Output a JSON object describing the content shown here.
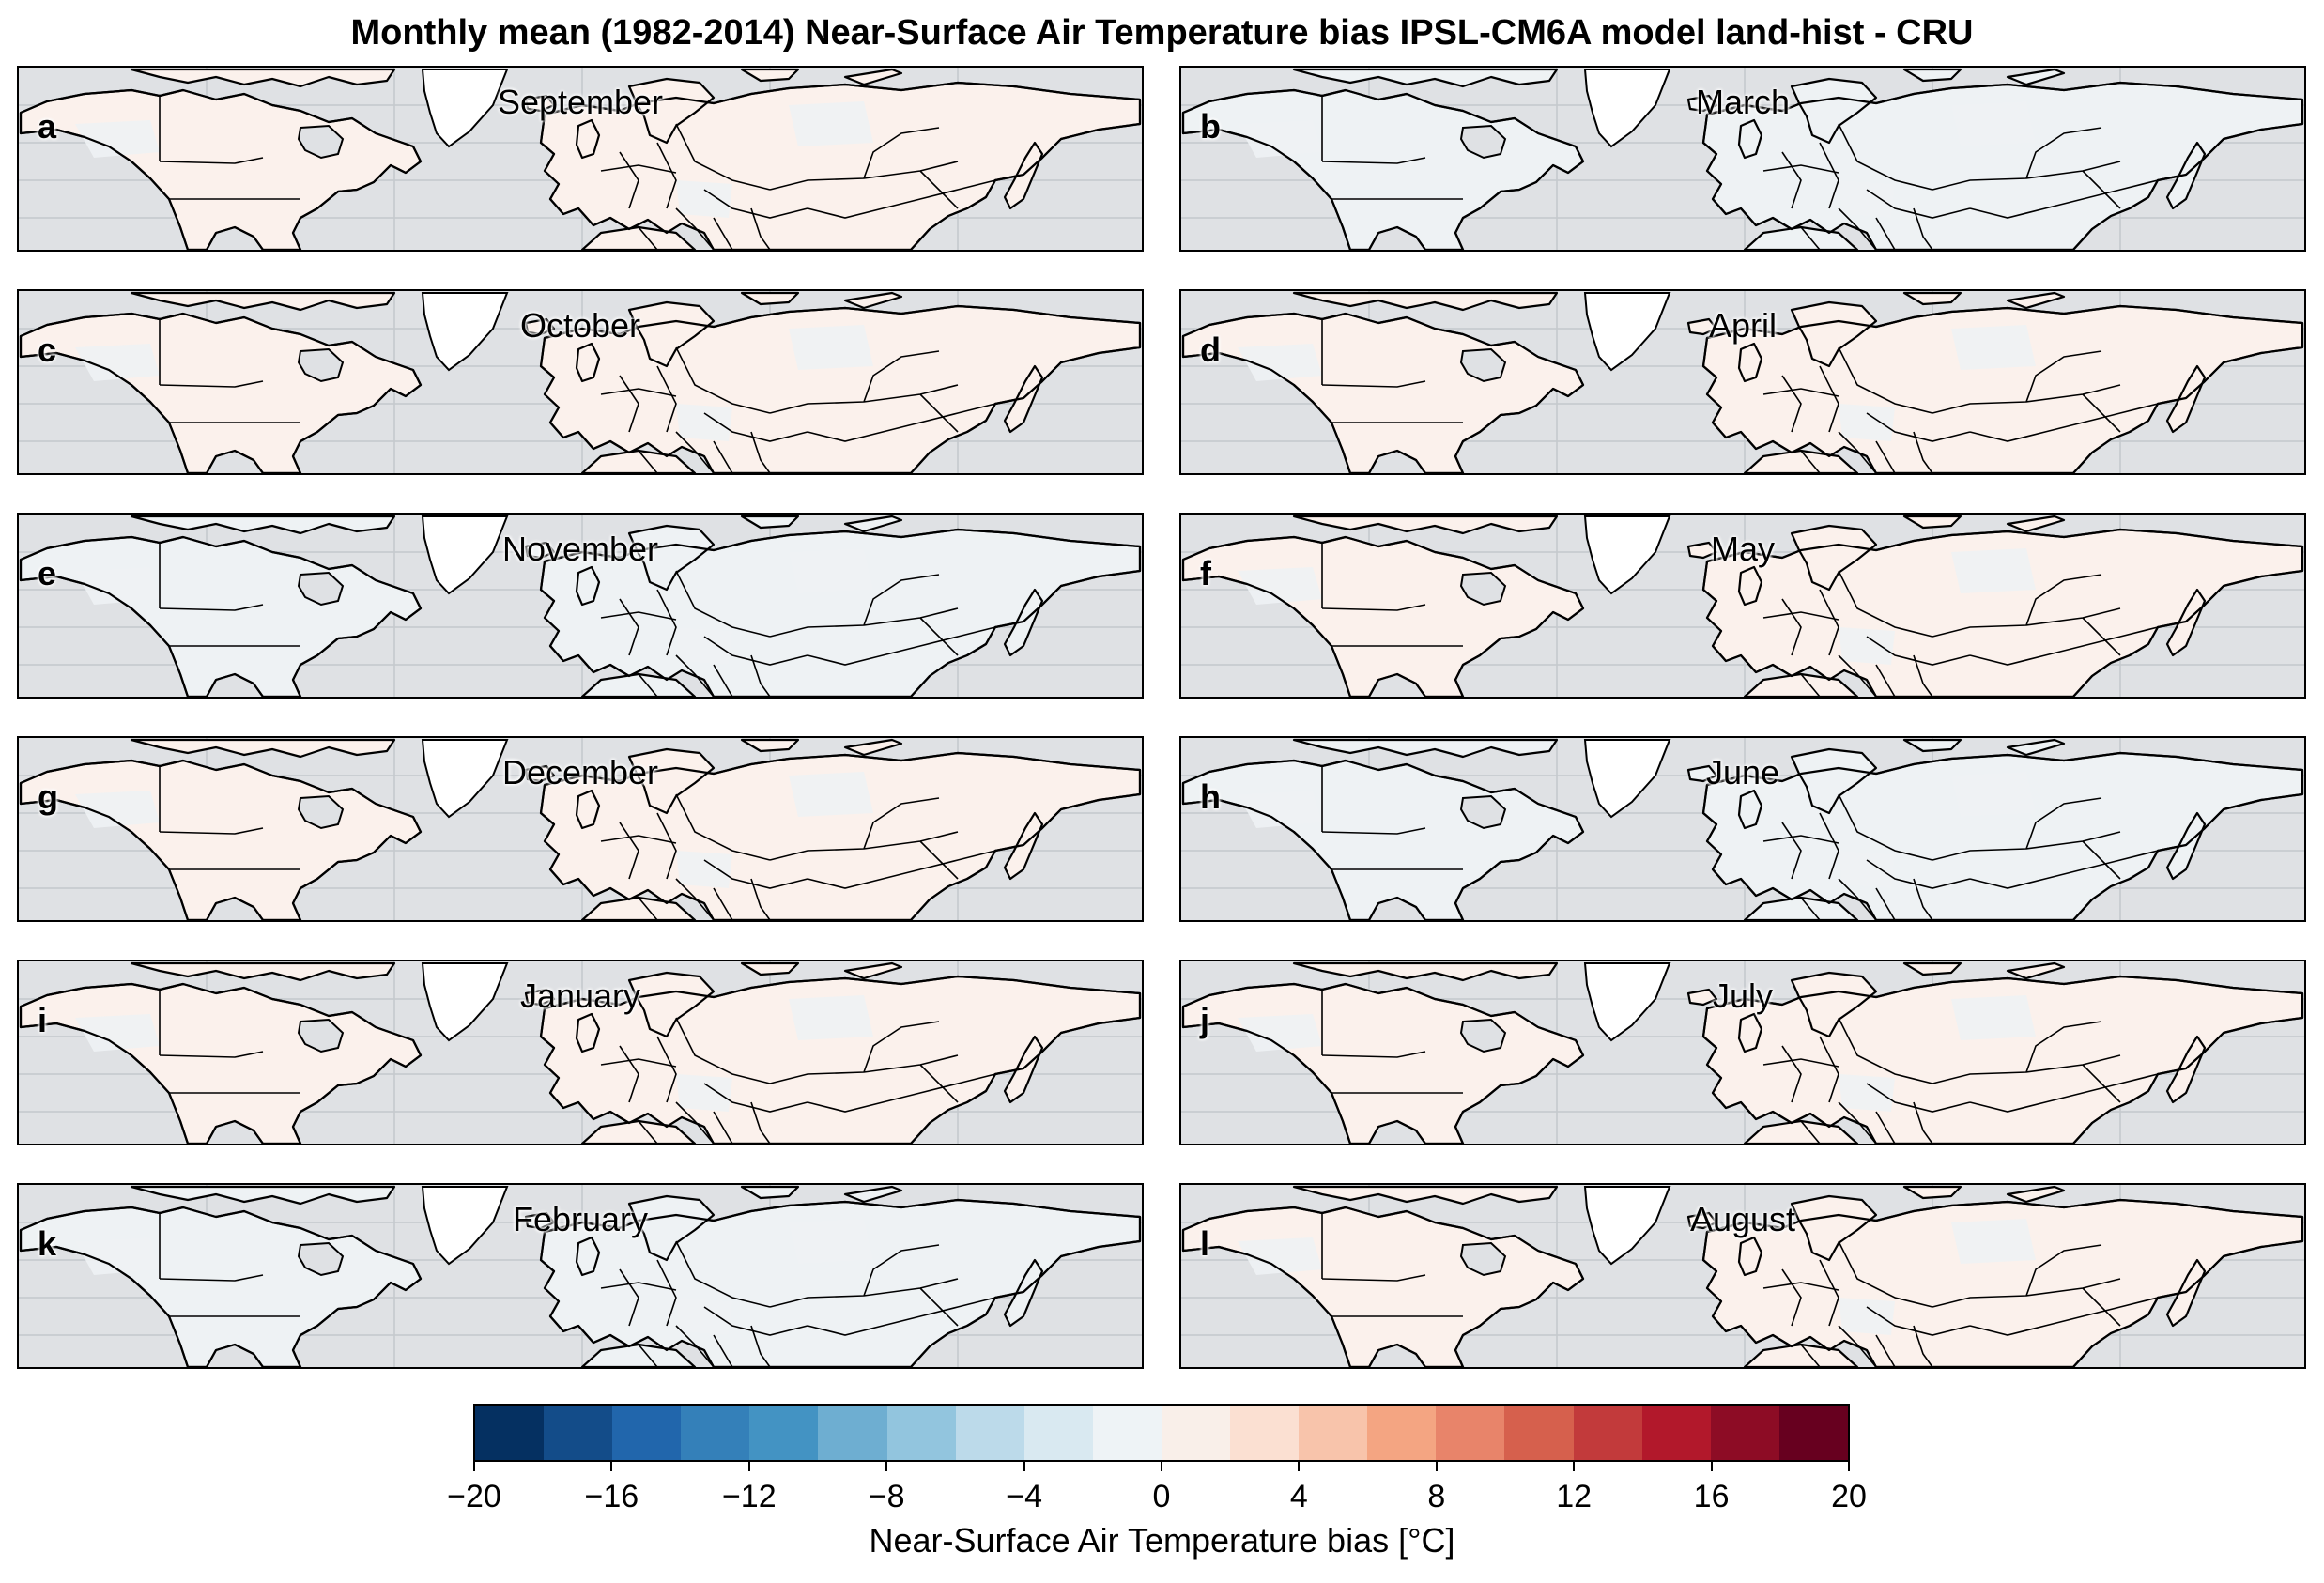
{
  "title": "Monthly mean (1982-2014) Near-Surface Air Temperature bias IPSL-CM6A model land-hist - CRU",
  "panels": [
    {
      "label": "a",
      "month": "September"
    },
    {
      "label": "b",
      "month": "March"
    },
    {
      "label": "c",
      "month": "October"
    },
    {
      "label": "d",
      "month": "April"
    },
    {
      "label": "e",
      "month": "November"
    },
    {
      "label": "f",
      "month": "May"
    },
    {
      "label": "g",
      "month": "December"
    },
    {
      "label": "h",
      "month": "June"
    },
    {
      "label": "i",
      "month": "January"
    },
    {
      "label": "j",
      "month": "July"
    },
    {
      "label": "k",
      "month": "February"
    },
    {
      "label": "l",
      "month": "August"
    }
  ],
  "colors": {
    "ocean": "#dfe1e4",
    "land_warm": "#fbf1ec",
    "land_cool": "#eef2f4",
    "ice": "#ffffff",
    "border": "#000000"
  },
  "colorbar": {
    "label": "Near-Surface Air Temperature bias [°C]",
    "min": -20,
    "max": 20,
    "ticks": [
      "−20",
      "−16",
      "−12",
      "−8",
      "−4",
      "0",
      "4",
      "8",
      "12",
      "16",
      "20"
    ],
    "colors": [
      "#053061",
      "#134c89",
      "#2166ac",
      "#3480b9",
      "#4393c3",
      "#6eaed1",
      "#92c5de",
      "#bcdaea",
      "#d9e9f1",
      "#eef3f6",
      "#f9efe9",
      "#fbe0d2",
      "#f8c4ab",
      "#f4a582",
      "#e8846a",
      "#d6604d",
      "#c23a3b",
      "#b2182b",
      "#8d0c25",
      "#67001f"
    ]
  }
}
